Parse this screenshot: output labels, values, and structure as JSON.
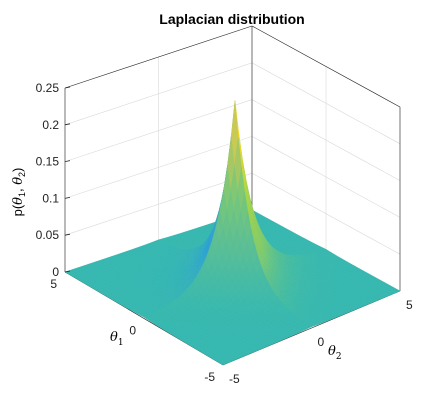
{
  "chart_data": {
    "type": "surface",
    "title": "Laplacian distribution",
    "zlabel": "p(θ1, θ2)",
    "xlabel": "θ1",
    "ylabel": "θ2",
    "xlim": [
      -5,
      5
    ],
    "ylim": [
      -5,
      5
    ],
    "zlim": [
      0,
      0.25
    ],
    "x_ticks": [
      "5",
      "0",
      "-5"
    ],
    "y_ticks": [
      "-5",
      "0",
      "5"
    ],
    "z_ticks": [
      "0",
      "0.05",
      "0.1",
      "0.15",
      "0.2",
      "0.25"
    ],
    "function": "p(θ1, θ2) = 1/4 · exp(-(|θ1| + |θ2|))",
    "peak": {
      "x": 0,
      "y": 0,
      "z": 0.25
    },
    "colormap": "parula",
    "colors": {
      "low": "#36b8b0",
      "mid": "#0f95d6",
      "high": "#e8c840"
    },
    "grid": true
  }
}
